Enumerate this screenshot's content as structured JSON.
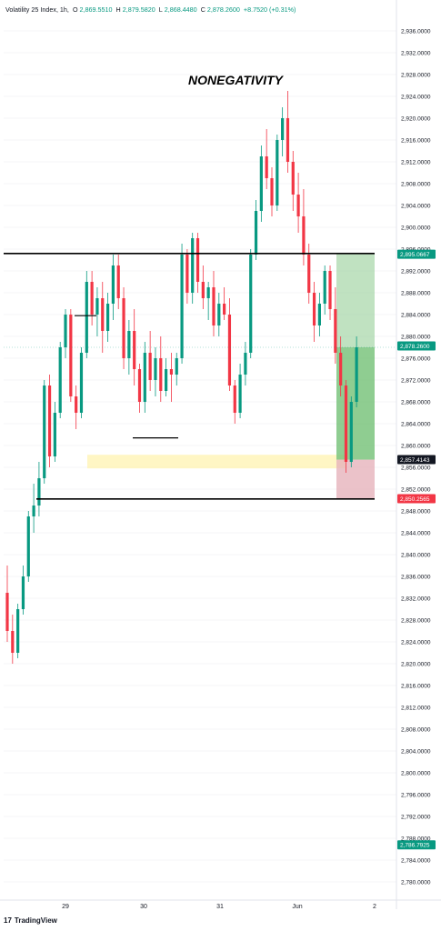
{
  "header": {
    "symbol": "Volatility 25 Index, 1h,",
    "o_label": "O",
    "o_value": "2,869.5510",
    "h_label": "H",
    "h_value": "2,879.5820",
    "l_label": "L",
    "l_value": "2,868.4480",
    "c_label": "C",
    "c_value": "2,878.2600",
    "change": "+8.7520 (+0.31%)"
  },
  "annotation": "NONEGATIVITY",
  "footer": {
    "logo": "17",
    "brand": "TradingView"
  },
  "colors": {
    "up": "#089981",
    "down": "#f23645",
    "target_zone": "#a5d6a7",
    "stop_zone": "#e6b3bc",
    "demand_zone": "#fff3b0",
    "level_line": "#000000"
  },
  "chart_data": {
    "type": "candlestick",
    "timeframe": "1h",
    "ylim": [
      2778,
      2938
    ],
    "y_ticks": [
      "2,936.0000",
      "2,932.0000",
      "2,928.0000",
      "2,924.0000",
      "2,920.0000",
      "2,916.0000",
      "2,912.0000",
      "2,908.0000",
      "2,904.0000",
      "2,900.0000",
      "2,896.0000",
      "2,892.0000",
      "2,888.0000",
      "2,884.0000",
      "2,880.0000",
      "2,876.0000",
      "2,872.0000",
      "2,868.0000",
      "2,864.0000",
      "2,860.0000",
      "2,856.0000",
      "2,852.0000",
      "2,848.0000",
      "2,844.0000",
      "2,840.0000",
      "2,836.0000",
      "2,832.0000",
      "2,828.0000",
      "2,824.0000",
      "2,820.0000",
      "2,816.0000",
      "2,812.0000",
      "2,808.0000",
      "2,804.0000",
      "2,800.0000",
      "2,796.0000",
      "2,792.0000",
      "2,788.0000",
      "2,784.0000",
      "2,780.0000"
    ],
    "x_labels": [
      "29",
      "30",
      "31",
      "Jun",
      "2"
    ],
    "price_labels": [
      {
        "text": "2,895.0667",
        "value": 2895.0667,
        "color": "#089981"
      },
      {
        "text": "2,878.2600",
        "value": 2878.26,
        "color": "#089981"
      },
      {
        "text": "2,857.4143",
        "value": 2857.4143,
        "color": "#131722"
      },
      {
        "text": "2,850.2565",
        "value": 2850.2565,
        "color": "#f23645"
      },
      {
        "text": "2,786.7925",
        "value": 2786.7925,
        "color": "#089981"
      }
    ],
    "levels": [
      2895.2,
      2850.2
    ],
    "position": {
      "entry": 2857.4,
      "target": 2895.07,
      "stop": 2850.26
    },
    "demand_zone": [
      2855.8,
      2858.3
    ],
    "candles": [
      [
        2833,
        2838,
        2824,
        2826
      ],
      [
        2826,
        2829,
        2820,
        2822
      ],
      [
        2822,
        2831,
        2821,
        2830
      ],
      [
        2830,
        2838,
        2829,
        2836
      ],
      [
        2836,
        2848,
        2835,
        2847
      ],
      [
        2847,
        2853,
        2844,
        2849
      ],
      [
        2849,
        2857,
        2847,
        2854
      ],
      [
        2854,
        2872,
        2853,
        2871
      ],
      [
        2871,
        2873,
        2856,
        2858
      ],
      [
        2858,
        2868,
        2857,
        2866
      ],
      [
        2866,
        2879,
        2865,
        2878
      ],
      [
        2878,
        2885,
        2876,
        2884
      ],
      [
        2884,
        2885,
        2868,
        2869
      ],
      [
        2869,
        2871,
        2863,
        2866
      ],
      [
        2866,
        2878,
        2865,
        2877
      ],
      [
        2877,
        2892,
        2876,
        2890
      ],
      [
        2890,
        2892,
        2882,
        2884
      ],
      [
        2884,
        2889,
        2880,
        2887
      ],
      [
        2887,
        2890,
        2877,
        2881
      ],
      [
        2881,
        2888,
        2879,
        2886
      ],
      [
        2886,
        2895,
        2883,
        2893
      ],
      [
        2893,
        2895,
        2885,
        2887
      ],
      [
        2887,
        2889,
        2874,
        2876
      ],
      [
        2876,
        2883,
        2873,
        2881
      ],
      [
        2881,
        2885,
        2871,
        2874
      ],
      [
        2874,
        2875,
        2866,
        2868
      ],
      [
        2868,
        2879,
        2866,
        2877
      ],
      [
        2877,
        2881,
        2870,
        2872
      ],
      [
        2872,
        2878,
        2869,
        2876
      ],
      [
        2876,
        2880,
        2868,
        2870
      ],
      [
        2870,
        2876,
        2869,
        2874
      ],
      [
        2874,
        2877,
        2868,
        2873
      ],
      [
        2873,
        2877,
        2871,
        2876
      ],
      [
        2876,
        2897,
        2875,
        2895
      ],
      [
        2895,
        2896,
        2886,
        2888
      ],
      [
        2888,
        2899,
        2886,
        2898
      ],
      [
        2898,
        2899,
        2888,
        2890
      ],
      [
        2890,
        2893,
        2885,
        2887
      ],
      [
        2887,
        2890,
        2883,
        2889
      ],
      [
        2889,
        2892,
        2880,
        2882
      ],
      [
        2882,
        2888,
        2880,
        2886
      ],
      [
        2886,
        2889,
        2883,
        2884
      ],
      [
        2884,
        2887,
        2870,
        2871
      ],
      [
        2871,
        2872,
        2864,
        2866
      ],
      [
        2866,
        2875,
        2865,
        2873
      ],
      [
        2873,
        2879,
        2871,
        2877
      ],
      [
        2877,
        2896,
        2876,
        2895
      ],
      [
        2895,
        2905,
        2894,
        2903
      ],
      [
        2903,
        2915,
        2901,
        2913
      ],
      [
        2913,
        2918,
        2907,
        2909
      ],
      [
        2909,
        2911,
        2902,
        2904
      ],
      [
        2904,
        2917,
        2903,
        2916
      ],
      [
        2916,
        2922,
        2913,
        2920
      ],
      [
        2920,
        2925,
        2910,
        2912
      ],
      [
        2912,
        2914,
        2903,
        2906
      ],
      [
        2906,
        2910,
        2899,
        2902
      ],
      [
        2902,
        2907,
        2893,
        2895
      ],
      [
        2895,
        2897,
        2886,
        2888
      ],
      [
        2888,
        2890,
        2879,
        2882
      ],
      [
        2882,
        2888,
        2880,
        2886
      ],
      [
        2886,
        2893,
        2884,
        2892
      ],
      [
        2892,
        2893,
        2883,
        2885
      ],
      [
        2885,
        2889,
        2875,
        2877
      ],
      [
        2877,
        2880,
        2869,
        2871
      ],
      [
        2871,
        2872,
        2855,
        2857
      ],
      [
        2857,
        2869,
        2856,
        2868
      ],
      [
        2868,
        2880,
        2867,
        2878
      ]
    ]
  }
}
